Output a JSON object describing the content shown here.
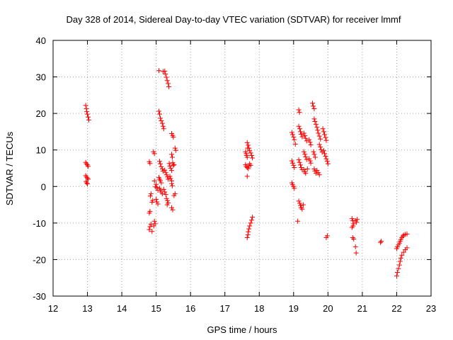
{
  "chart_data": {
    "type": "scatter",
    "title": "Day 328 of 2014, Sidereal Day-to-day VTEC variation (SDTVAR) for receiver lmmf",
    "xlabel": "GPS time / hours",
    "ylabel": "SDTVAR / TECUs",
    "xlim": [
      12,
      23
    ],
    "ylim": [
      -30,
      40
    ],
    "xticks": [
      12,
      13,
      14,
      15,
      16,
      17,
      18,
      19,
      20,
      21,
      22,
      23
    ],
    "yticks": [
      -30,
      -20,
      -10,
      0,
      10,
      20,
      30,
      40
    ],
    "grid": true,
    "marker": "+",
    "series": [
      {
        "name": "SDTVAR",
        "color": "#ff0000",
        "points": [
          [
            12.95,
            22.2
          ],
          [
            12.97,
            21.3
          ],
          [
            12.98,
            20.5
          ],
          [
            13.0,
            19.8
          ],
          [
            13.02,
            19.0
          ],
          [
            13.04,
            18.2
          ],
          [
            12.95,
            6.6
          ],
          [
            12.97,
            6.2
          ],
          [
            13.0,
            5.9
          ],
          [
            13.02,
            5.5
          ],
          [
            12.95,
            3.0
          ],
          [
            12.97,
            2.6
          ],
          [
            13.0,
            2.3
          ],
          [
            13.02,
            2.0
          ],
          [
            12.96,
            1.4
          ],
          [
            12.98,
            1.0
          ],
          [
            13.0,
            0.7
          ],
          [
            14.8,
            6.8
          ],
          [
            14.82,
            6.3
          ],
          [
            14.85,
            -2.0
          ],
          [
            14.83,
            -2.6
          ],
          [
            14.88,
            -4.3
          ],
          [
            14.9,
            -3.8
          ],
          [
            14.82,
            -6.8
          ],
          [
            14.8,
            -7.3
          ],
          [
            14.8,
            -11.8
          ],
          [
            14.82,
            -11.0
          ],
          [
            14.85,
            -10.3
          ],
          [
            14.88,
            -12.3
          ],
          [
            14.95,
            -9.5
          ],
          [
            14.97,
            -10.2
          ],
          [
            14.93,
            -10.8
          ],
          [
            14.92,
            9.5
          ],
          [
            14.95,
            9.0
          ],
          [
            14.95,
            1.5
          ],
          [
            15.0,
            0.6
          ],
          [
            15.02,
            -0.3
          ],
          [
            15.05,
            -1.0
          ],
          [
            14.98,
            -0.1
          ],
          [
            15.0,
            -3.5
          ],
          [
            15.02,
            -4.2
          ],
          [
            15.05,
            -4.8
          ],
          [
            15.08,
            20.6
          ],
          [
            15.1,
            19.8
          ],
          [
            15.12,
            18.7
          ],
          [
            15.15,
            18.0
          ],
          [
            15.18,
            17.3
          ],
          [
            15.2,
            16.5
          ],
          [
            15.22,
            15.8
          ],
          [
            15.1,
            6.9
          ],
          [
            15.12,
            6.2
          ],
          [
            15.15,
            5.4
          ],
          [
            15.18,
            4.8
          ],
          [
            15.2,
            4.2
          ],
          [
            15.08,
            2.5
          ],
          [
            15.1,
            2.0
          ],
          [
            15.12,
            1.6
          ],
          [
            15.15,
            1.0
          ],
          [
            15.1,
            -0.5
          ],
          [
            15.12,
            -1.0
          ],
          [
            15.15,
            -1.5
          ],
          [
            15.18,
            -2.0
          ],
          [
            15.08,
            31.7
          ],
          [
            15.2,
            31.5
          ],
          [
            15.25,
            31.6
          ],
          [
            15.27,
            30.8
          ],
          [
            15.3,
            29.9
          ],
          [
            15.32,
            29.0
          ],
          [
            15.35,
            28.2
          ],
          [
            15.37,
            27.3
          ],
          [
            15.25,
            4.5
          ],
          [
            15.28,
            3.8
          ],
          [
            15.3,
            3.2
          ],
          [
            15.33,
            2.6
          ],
          [
            15.35,
            2.0
          ],
          [
            15.22,
            -0.8
          ],
          [
            15.25,
            -1.5
          ],
          [
            15.28,
            -2.2
          ],
          [
            15.3,
            -3.3
          ],
          [
            15.33,
            -3.9
          ],
          [
            15.35,
            -4.5
          ],
          [
            15.32,
            -5.0
          ],
          [
            15.38,
            6.3
          ],
          [
            15.4,
            5.6
          ],
          [
            15.42,
            5.0
          ],
          [
            15.45,
            4.4
          ],
          [
            15.4,
            2.8
          ],
          [
            15.42,
            2.2
          ],
          [
            15.45,
            1.5
          ],
          [
            15.45,
            14.5
          ],
          [
            15.48,
            14.0
          ],
          [
            15.5,
            13.5
          ],
          [
            15.45,
            8.8
          ],
          [
            15.47,
            8.0
          ],
          [
            15.48,
            6.5
          ],
          [
            15.5,
            5.8
          ],
          [
            15.52,
            6.0
          ],
          [
            15.45,
            0.8
          ],
          [
            15.47,
            0.2
          ],
          [
            15.55,
            10.5
          ],
          [
            15.57,
            9.9
          ],
          [
            15.52,
            -2.5
          ],
          [
            15.55,
            -2.0
          ],
          [
            15.45,
            -5.8
          ],
          [
            15.48,
            -6.4
          ],
          [
            17.6,
            9.5
          ],
          [
            17.62,
            9.0
          ],
          [
            17.63,
            8.5
          ],
          [
            17.65,
            8.0
          ],
          [
            17.66,
            10.5
          ],
          [
            17.65,
            12.0
          ],
          [
            17.68,
            11.3
          ],
          [
            17.7,
            10.5
          ],
          [
            17.72,
            9.8
          ],
          [
            17.75,
            9.2
          ],
          [
            17.78,
            8.5
          ],
          [
            17.8,
            7.8
          ],
          [
            17.6,
            6.0
          ],
          [
            17.62,
            5.5
          ],
          [
            17.65,
            5.2
          ],
          [
            17.68,
            4.9
          ],
          [
            17.7,
            5.6
          ],
          [
            17.72,
            6.2
          ],
          [
            17.75,
            5.8
          ],
          [
            17.65,
            2.8
          ],
          [
            17.65,
            -14.0
          ],
          [
            17.67,
            -13.2
          ],
          [
            17.68,
            -12.4
          ],
          [
            17.7,
            -11.6
          ],
          [
            17.72,
            -10.8
          ],
          [
            17.75,
            -10.0
          ],
          [
            17.78,
            -9.2
          ],
          [
            17.8,
            -8.4
          ],
          [
            18.95,
            14.8
          ],
          [
            18.97,
            14.2
          ],
          [
            19.0,
            13.5
          ],
          [
            19.02,
            12.8
          ],
          [
            19.05,
            11.6
          ],
          [
            18.95,
            7.0
          ],
          [
            18.97,
            6.4
          ],
          [
            19.0,
            5.8
          ],
          [
            19.02,
            5.2
          ],
          [
            18.95,
            1.0
          ],
          [
            18.97,
            0.5
          ],
          [
            19.0,
            0.0
          ],
          [
            19.02,
            -0.5
          ],
          [
            19.15,
            21.0
          ],
          [
            19.17,
            20.3
          ],
          [
            19.15,
            16.5
          ],
          [
            19.18,
            15.8
          ],
          [
            19.2,
            15.0
          ],
          [
            19.22,
            14.3
          ],
          [
            19.25,
            13.6
          ],
          [
            19.15,
            7.3
          ],
          [
            19.17,
            6.6
          ],
          [
            19.2,
            5.9
          ],
          [
            19.22,
            5.2
          ],
          [
            19.25,
            4.6
          ],
          [
            19.15,
            -4.0
          ],
          [
            19.18,
            -4.6
          ],
          [
            19.2,
            -5.2
          ],
          [
            19.22,
            -5.8
          ],
          [
            19.25,
            -6.2
          ],
          [
            19.28,
            -5.0
          ],
          [
            19.12,
            -9.5
          ],
          [
            19.3,
            14.6
          ],
          [
            19.33,
            13.9
          ],
          [
            19.35,
            13.2
          ],
          [
            19.38,
            12.5
          ],
          [
            19.3,
            9.5
          ],
          [
            19.33,
            8.8
          ],
          [
            19.35,
            8.1
          ],
          [
            19.38,
            7.4
          ],
          [
            19.3,
            4.6
          ],
          [
            19.33,
            4.0
          ],
          [
            19.35,
            3.6
          ],
          [
            19.4,
            4.8
          ],
          [
            19.45,
            12.8
          ],
          [
            19.48,
            12.1
          ],
          [
            19.5,
            11.4
          ],
          [
            19.45,
            7.6
          ],
          [
            19.48,
            7.0
          ],
          [
            19.5,
            6.4
          ],
          [
            19.55,
            22.8
          ],
          [
            19.57,
            22.0
          ],
          [
            19.6,
            21.3
          ],
          [
            19.6,
            18.5
          ],
          [
            19.62,
            17.8
          ],
          [
            19.65,
            17.0
          ],
          [
            19.68,
            16.2
          ],
          [
            19.7,
            15.4
          ],
          [
            19.72,
            14.6
          ],
          [
            19.75,
            13.8
          ],
          [
            19.78,
            13.0
          ],
          [
            19.58,
            9.5
          ],
          [
            19.6,
            8.8
          ],
          [
            19.63,
            8.0
          ],
          [
            19.6,
            4.8
          ],
          [
            19.62,
            4.2
          ],
          [
            19.65,
            3.6
          ],
          [
            19.68,
            4.4
          ],
          [
            19.75,
            11.5
          ],
          [
            19.78,
            10.8
          ],
          [
            19.8,
            10.1
          ],
          [
            19.83,
            9.4
          ],
          [
            19.72,
            3.8
          ],
          [
            19.75,
            3.2
          ],
          [
            19.85,
            15.8
          ],
          [
            19.88,
            15.0
          ],
          [
            19.9,
            14.2
          ],
          [
            19.93,
            13.4
          ],
          [
            19.95,
            12.6
          ],
          [
            19.88,
            9.8
          ],
          [
            19.9,
            9.0
          ],
          [
            19.93,
            8.3
          ],
          [
            19.95,
            7.6
          ],
          [
            19.98,
            6.9
          ],
          [
            20.0,
            6.2
          ],
          [
            19.95,
            -14.0
          ],
          [
            19.98,
            -13.5
          ],
          [
            20.7,
            -8.8
          ],
          [
            20.72,
            -9.4
          ],
          [
            20.75,
            -10.2
          ],
          [
            20.73,
            -10.8
          ],
          [
            20.7,
            -11.2
          ],
          [
            20.72,
            -14.0
          ],
          [
            20.75,
            -14.4
          ],
          [
            20.8,
            -9.3
          ],
          [
            20.83,
            -9.8
          ],
          [
            20.85,
            -9.0
          ],
          [
            20.8,
            -16.5
          ],
          [
            20.82,
            -18.2
          ],
          [
            21.55,
            -15.0
          ],
          [
            21.53,
            -15.3
          ],
          [
            22.0,
            -17.0
          ],
          [
            22.02,
            -16.5
          ],
          [
            22.05,
            -16.0
          ],
          [
            22.08,
            -15.5
          ],
          [
            22.1,
            -15.0
          ],
          [
            22.12,
            -14.5
          ],
          [
            22.15,
            -14.0
          ],
          [
            22.18,
            -13.6
          ],
          [
            22.2,
            -13.3
          ],
          [
            22.25,
            -13.1
          ],
          [
            22.3,
            -13.0
          ],
          [
            22.0,
            -24.5
          ],
          [
            22.02,
            -23.5
          ],
          [
            22.05,
            -22.5
          ],
          [
            22.08,
            -21.5
          ],
          [
            22.1,
            -20.5
          ],
          [
            22.12,
            -19.6
          ],
          [
            22.15,
            -18.8
          ],
          [
            22.2,
            -18.0
          ],
          [
            22.25,
            -17.3
          ],
          [
            22.3,
            -16.8
          ]
        ]
      }
    ]
  }
}
